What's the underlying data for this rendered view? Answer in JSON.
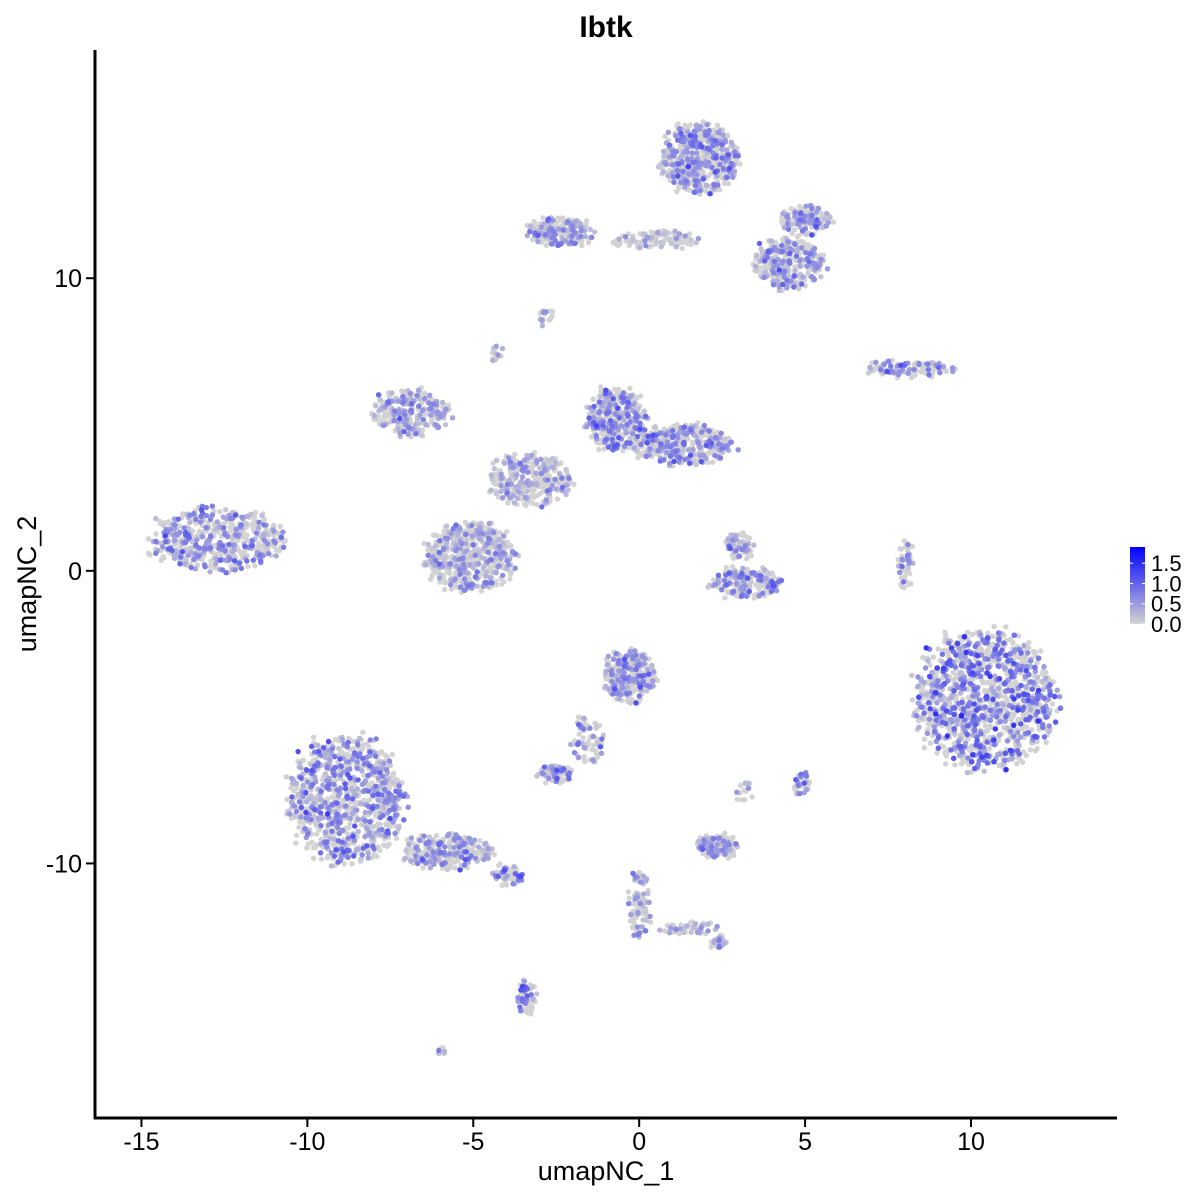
{
  "chart_data": {
    "type": "scatter",
    "title": "Ibtk",
    "xlabel": "umapNC_1",
    "ylabel": "umapNC_2",
    "xlim": [
      -16.4,
      14.4
    ],
    "ylim": [
      -18.7,
      17.8
    ],
    "xticks": [
      -15,
      -10,
      -5,
      0,
      5,
      10
    ],
    "xtick_labels": [
      "-15",
      "-10",
      "-5",
      "0",
      "5",
      "10"
    ],
    "yticks": [
      -10,
      0,
      10
    ],
    "ytick_labels": [
      "-10",
      "0",
      "10"
    ],
    "grid": false,
    "legend": {
      "placement": "right",
      "type": "colorbar",
      "ticks": [
        0.0,
        0.5,
        1.0,
        1.5
      ],
      "tick_labels": [
        "0.0",
        "0.5",
        "1.0",
        "1.5"
      ],
      "range": [
        0,
        1.9
      ],
      "low_color": "#D3D3D3",
      "high_color": "#0000FF"
    },
    "clusters_note_fields": [
      "x",
      "y",
      "spread_x",
      "spread_y",
      "cells",
      "mean_expression"
    ],
    "clusters": [
      [
        -12.75,
        1.06,
        2.0,
        1.1,
        520,
        0.55
      ],
      [
        -8.85,
        -7.8,
        1.8,
        2.2,
        900,
        0.6
      ],
      [
        -5.8,
        -9.6,
        1.4,
        0.6,
        250,
        0.55
      ],
      [
        -4.0,
        -10.4,
        0.5,
        0.3,
        60,
        0.6
      ],
      [
        -3.4,
        -14.6,
        0.25,
        0.6,
        60,
        0.7
      ],
      [
        -5.1,
        0.5,
        1.4,
        1.2,
        500,
        0.4
      ],
      [
        -6.9,
        5.4,
        1.2,
        0.8,
        250,
        0.45
      ],
      [
        -3.3,
        3.1,
        1.3,
        0.9,
        300,
        0.35
      ],
      [
        -0.7,
        5.2,
        0.9,
        1.1,
        350,
        0.6
      ],
      [
        1.3,
        4.3,
        1.6,
        0.7,
        350,
        0.6
      ],
      [
        1.8,
        14.1,
        1.2,
        1.2,
        550,
        0.55
      ],
      [
        -2.4,
        11.6,
        1.0,
        0.5,
        200,
        0.45
      ],
      [
        0.5,
        11.3,
        1.4,
        0.3,
        100,
        0.25
      ],
      [
        4.5,
        10.5,
        1.1,
        0.9,
        300,
        0.5
      ],
      [
        5.0,
        12.0,
        0.8,
        0.5,
        120,
        0.55
      ],
      [
        -2.8,
        8.7,
        0.2,
        0.3,
        20,
        0.4
      ],
      [
        -4.3,
        7.4,
        0.2,
        0.2,
        15,
        0.6
      ],
      [
        8.2,
        6.9,
        1.4,
        0.25,
        120,
        0.6
      ],
      [
        3.2,
        -0.4,
        1.1,
        0.5,
        200,
        0.55
      ],
      [
        3.0,
        0.9,
        0.4,
        0.5,
        60,
        0.5
      ],
      [
        8.0,
        0.2,
        0.2,
        0.9,
        50,
        0.55
      ],
      [
        10.4,
        -4.4,
        2.2,
        2.4,
        1600,
        0.75
      ],
      [
        -0.3,
        -3.6,
        0.8,
        0.9,
        280,
        0.55
      ],
      [
        -1.6,
        -5.8,
        0.5,
        0.8,
        70,
        0.5
      ],
      [
        -2.5,
        -6.9,
        0.5,
        0.3,
        80,
        0.6
      ],
      [
        2.3,
        -9.4,
        0.6,
        0.4,
        130,
        0.45
      ],
      [
        0.0,
        -11.4,
        0.35,
        1.2,
        90,
        0.35
      ],
      [
        1.5,
        -12.2,
        0.9,
        0.2,
        50,
        0.35
      ],
      [
        2.4,
        -12.7,
        0.25,
        0.2,
        30,
        0.55
      ],
      [
        4.9,
        -7.3,
        0.25,
        0.4,
        35,
        0.6
      ],
      [
        3.2,
        -7.6,
        0.2,
        0.4,
        15,
        0.4
      ],
      [
        -6.0,
        -16.4,
        0.15,
        0.1,
        8,
        0.5
      ]
    ]
  }
}
